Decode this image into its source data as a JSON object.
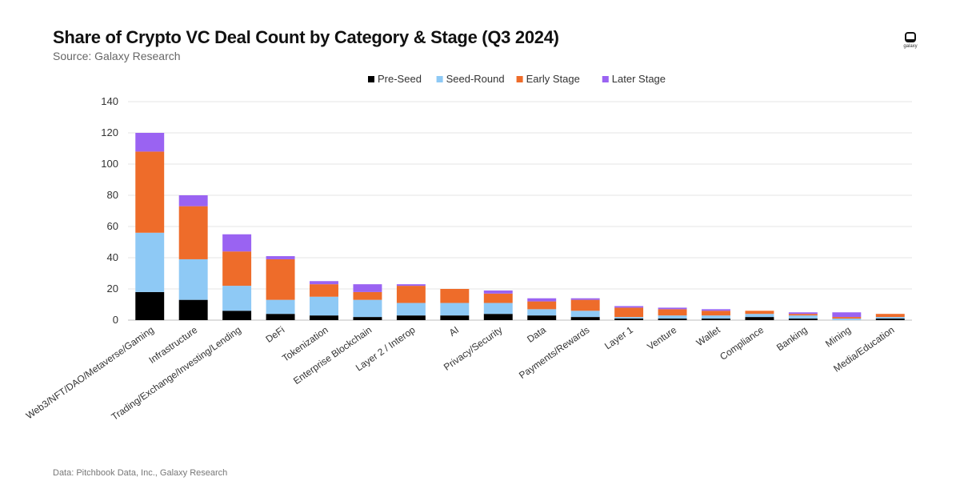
{
  "title": "Share of Crypto VC Deal Count by Category & Stage (Q3 2024)",
  "subtitle": "Source: Galaxy Research",
  "footnote": "Data: Pitchbook Data, Inc., Galaxy Research",
  "logo": {
    "text": "galaxy",
    "icon": "galaxy-logo-icon"
  },
  "chart_data": {
    "type": "bar",
    "stacked": true,
    "title": "Share of Crypto VC Deal Count by Category & Stage (Q3 2024)",
    "xlabel": "",
    "ylabel": "",
    "ylim": [
      0,
      140
    ],
    "yticks": [
      0,
      20,
      40,
      60,
      80,
      100,
      120,
      140
    ],
    "grid": true,
    "legend_position": "top-center",
    "categories": [
      "Web3/NFT/DAO/Metaverse/Gaming",
      "Infrastructure",
      "Trading/Exchange/Investing/Lending",
      "DeFi",
      "Tokenization",
      "Enterprise Blockchain",
      "Layer 2 / Interop",
      "AI",
      "Privacy/Security",
      "Data",
      "Payments/Rewards",
      "Layer 1",
      "Venture",
      "Wallet",
      "Compliance",
      "Banking",
      "Mining",
      "Media/Education"
    ],
    "series": [
      {
        "name": "Pre-Seed",
        "color": "#000000",
        "values": [
          18,
          13,
          6,
          4,
          3,
          2,
          3,
          3,
          4,
          3,
          2,
          1,
          1,
          1,
          2,
          1,
          0,
          1
        ]
      },
      {
        "name": "Seed-Round",
        "color": "#8ec9f5",
        "values": [
          38,
          26,
          16,
          9,
          12,
          11,
          8,
          8,
          7,
          4,
          4,
          1,
          2,
          2,
          2,
          2,
          1,
          1
        ]
      },
      {
        "name": "Early Stage",
        "color": "#ee6c2a",
        "values": [
          52,
          34,
          22,
          26,
          8,
          5,
          11,
          9,
          6,
          5,
          7,
          6,
          4,
          3,
          2,
          1,
          1,
          2
        ]
      },
      {
        "name": "Later Stage",
        "color": "#9a63f2",
        "values": [
          12,
          7,
          11,
          2,
          2,
          5,
          1,
          0,
          2,
          2,
          1,
          1,
          1,
          1,
          0,
          1,
          3,
          0
        ]
      }
    ]
  }
}
